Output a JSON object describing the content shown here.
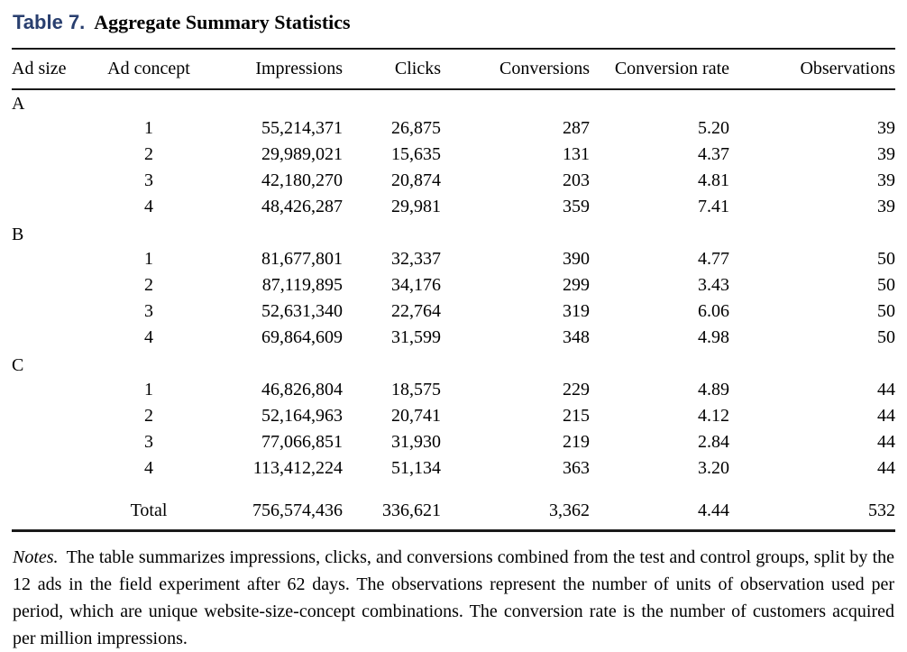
{
  "title": {
    "label": "Table 7.",
    "text": "Aggregate Summary Statistics"
  },
  "table": {
    "columns": [
      "Ad size",
      "Ad concept",
      "Impressions",
      "Clicks",
      "Conversions",
      "Conversion rate",
      "Observations"
    ],
    "groups": [
      {
        "ad_size": "A",
        "rows": [
          {
            "concept": "1",
            "impressions": "55,214,371",
            "clicks": "26,875",
            "conversions": "287",
            "conversion_rate": "5.20",
            "observations": "39"
          },
          {
            "concept": "2",
            "impressions": "29,989,021",
            "clicks": "15,635",
            "conversions": "131",
            "conversion_rate": "4.37",
            "observations": "39"
          },
          {
            "concept": "3",
            "impressions": "42,180,270",
            "clicks": "20,874",
            "conversions": "203",
            "conversion_rate": "4.81",
            "observations": "39"
          },
          {
            "concept": "4",
            "impressions": "48,426,287",
            "clicks": "29,981",
            "conversions": "359",
            "conversion_rate": "7.41",
            "observations": "39"
          }
        ]
      },
      {
        "ad_size": "B",
        "rows": [
          {
            "concept": "1",
            "impressions": "81,677,801",
            "clicks": "32,337",
            "conversions": "390",
            "conversion_rate": "4.77",
            "observations": "50"
          },
          {
            "concept": "2",
            "impressions": "87,119,895",
            "clicks": "34,176",
            "conversions": "299",
            "conversion_rate": "3.43",
            "observations": "50"
          },
          {
            "concept": "3",
            "impressions": "52,631,340",
            "clicks": "22,764",
            "conversions": "319",
            "conversion_rate": "6.06",
            "observations": "50"
          },
          {
            "concept": "4",
            "impressions": "69,864,609",
            "clicks": "31,599",
            "conversions": "348",
            "conversion_rate": "4.98",
            "observations": "50"
          }
        ]
      },
      {
        "ad_size": "C",
        "rows": [
          {
            "concept": "1",
            "impressions": "46,826,804",
            "clicks": "18,575",
            "conversions": "229",
            "conversion_rate": "4.89",
            "observations": "44"
          },
          {
            "concept": "2",
            "impressions": "52,164,963",
            "clicks": "20,741",
            "conversions": "215",
            "conversion_rate": "4.12",
            "observations": "44"
          },
          {
            "concept": "3",
            "impressions": "77,066,851",
            "clicks": "31,930",
            "conversions": "219",
            "conversion_rate": "2.84",
            "observations": "44"
          },
          {
            "concept": "4",
            "impressions": "113,412,224",
            "clicks": "51,134",
            "conversions": "363",
            "conversion_rate": "3.20",
            "observations": "44"
          }
        ]
      }
    ],
    "total": {
      "label": "Total",
      "impressions": "756,574,436",
      "clicks": "336,621",
      "conversions": "3,362",
      "conversion_rate": "4.44",
      "observations": "532"
    }
  },
  "notes": {
    "label": "Notes.",
    "text": "The table summarizes impressions, clicks, and conversions combined from the test and control groups, split by the 12 ads in the field experiment after 62 days. The observations represent the number of units of observation used per period, which are unique website-size-concept combinations. The conversion rate is the number of customers acquired per million impressions."
  },
  "colors": {
    "title_accent": "#293f6f",
    "rule": "#1a1a1a",
    "text": "#000000",
    "background": "#ffffff"
  }
}
